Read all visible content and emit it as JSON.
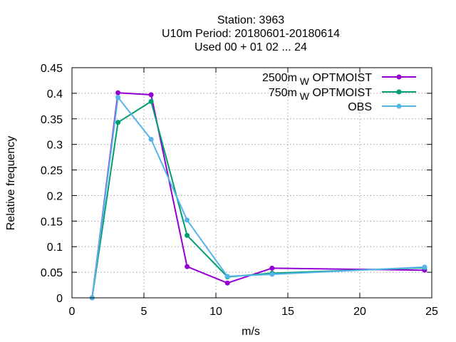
{
  "chart_data": {
    "type": "line",
    "title_lines": [
      "Station:     3963",
      "U10m  Period: 20180601-20180614",
      "Used  00 + 01 02 ... 24"
    ],
    "xlabel": "m/s",
    "ylabel": "Relative frequency",
    "xlim": [
      0,
      25
    ],
    "ylim": [
      0,
      0.45
    ],
    "xticks": [
      0,
      5,
      10,
      15,
      20,
      25
    ],
    "yticks": [
      0,
      0.05,
      0.1,
      0.15,
      0.2,
      0.25,
      0.3,
      0.35,
      0.4,
      0.45
    ],
    "xtick_labels": [
      "0",
      "5",
      "10",
      "15",
      "20",
      "25"
    ],
    "ytick_labels": [
      "0",
      "0.05",
      "0.1",
      "0.15",
      "0.2",
      "0.25",
      "0.3",
      "0.35",
      "0.4",
      "0.45"
    ],
    "grid": true,
    "legend_position": "top-right",
    "series": [
      {
        "name_main": "2500m",
        "name_sub": "W",
        "name_rest": "OPTMOIST",
        "color": "#9400d3",
        "x": [
          1.4,
          3.2,
          5.5,
          8.0,
          10.8,
          13.9,
          24.5
        ],
        "y": [
          0.0,
          0.401,
          0.397,
          0.061,
          0.029,
          0.058,
          0.054
        ]
      },
      {
        "name_main": "750m",
        "name_sub": "W",
        "name_rest": "OPTMOIST",
        "color": "#009e73",
        "x": [
          1.4,
          3.2,
          5.5,
          8.0,
          10.8,
          13.9,
          24.5
        ],
        "y": [
          0.0,
          0.343,
          0.384,
          0.122,
          0.041,
          0.048,
          0.059
        ]
      },
      {
        "name_main": "OBS",
        "name_sub": "",
        "name_rest": "",
        "color": "#56b4e9",
        "x": [
          1.4,
          3.2,
          5.5,
          8.0,
          10.8,
          13.9,
          24.5
        ],
        "y": [
          0.0,
          0.392,
          0.31,
          0.152,
          0.042,
          0.046,
          0.06
        ]
      }
    ]
  }
}
